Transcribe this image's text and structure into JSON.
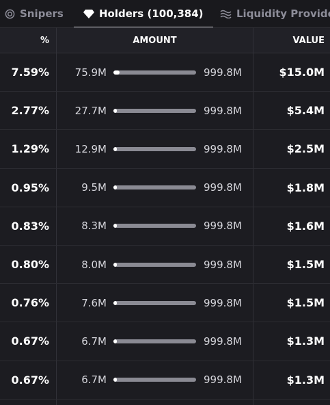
{
  "tabs": [
    {
      "label": "Snipers",
      "icon": "crosshair-icon"
    },
    {
      "label": "Holders (100,384)",
      "icon": "diamond-icon"
    },
    {
      "label": "Liquidity Provide",
      "icon": "waves-icon"
    }
  ],
  "table": {
    "headers": {
      "percent": "%",
      "amount": "AMOUNT",
      "value": "VALUE"
    },
    "total_supply": "999.8M",
    "rows": [
      {
        "percent": "7.59%",
        "amount": "75.9M",
        "value": "$15.0M",
        "share": 0.0759
      },
      {
        "percent": "2.77%",
        "amount": "27.7M",
        "value": "$5.4M",
        "share": 0.0277
      },
      {
        "percent": "1.29%",
        "amount": "12.9M",
        "value": "$2.5M",
        "share": 0.0129
      },
      {
        "percent": "0.95%",
        "amount": "9.5M",
        "value": "$1.8M",
        "share": 0.0095
      },
      {
        "percent": "0.83%",
        "amount": "8.3M",
        "value": "$1.6M",
        "share": 0.0083
      },
      {
        "percent": "0.80%",
        "amount": "8.0M",
        "value": "$1.5M",
        "share": 0.008
      },
      {
        "percent": "0.76%",
        "amount": "7.6M",
        "value": "$1.5M",
        "share": 0.0076
      },
      {
        "percent": "0.67%",
        "amount": "6.7M",
        "value": "$1.3M",
        "share": 0.0067
      },
      {
        "percent": "0.67%",
        "amount": "6.7M",
        "value": "$1.3M",
        "share": 0.0067
      }
    ]
  },
  "colors": {
    "background": "#1c1c21",
    "header": "#212127",
    "active_tab": "#ffffff",
    "inactive_tab": "#8d8d99"
  }
}
